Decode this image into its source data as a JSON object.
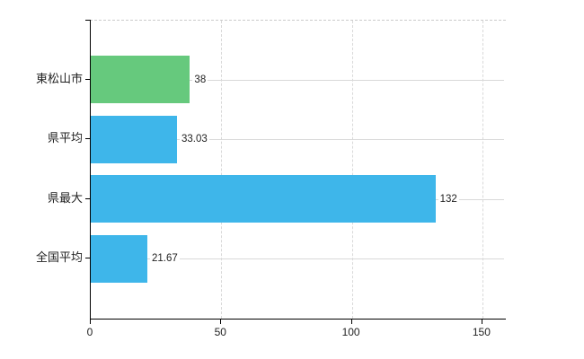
{
  "chart_data": {
    "type": "bar",
    "orientation": "horizontal",
    "title": "",
    "categories": [
      "東松山市",
      "県平均",
      "県最大",
      "全国平均"
    ],
    "series": [
      {
        "name": "",
        "values": [
          38,
          33.03,
          132,
          21.67
        ]
      }
    ],
    "value_labels": [
      "38",
      "33.03",
      "132",
      "21.67"
    ],
    "bar_colors": [
      "#66c97d",
      "#3eb6ea",
      "#3eb6ea",
      "#3eb6ea"
    ],
    "x_tick_labels": [
      "0",
      "50",
      "100",
      "150"
    ],
    "x_tick_values": [
      0,
      50,
      100,
      150
    ],
    "xlim": [
      0,
      158.3
    ],
    "legend": "none",
    "grid": {
      "vertical_gridlines": "dashed",
      "category_gridlines": "solid",
      "plot_top_border": "dashed"
    }
  },
  "colors": {
    "bar_blue": "#3eb6ea",
    "bar_green": "#66c97d",
    "axis": "#000000",
    "gridline": "#d9d9d9",
    "text": "#222222",
    "background": "#ffffff"
  }
}
